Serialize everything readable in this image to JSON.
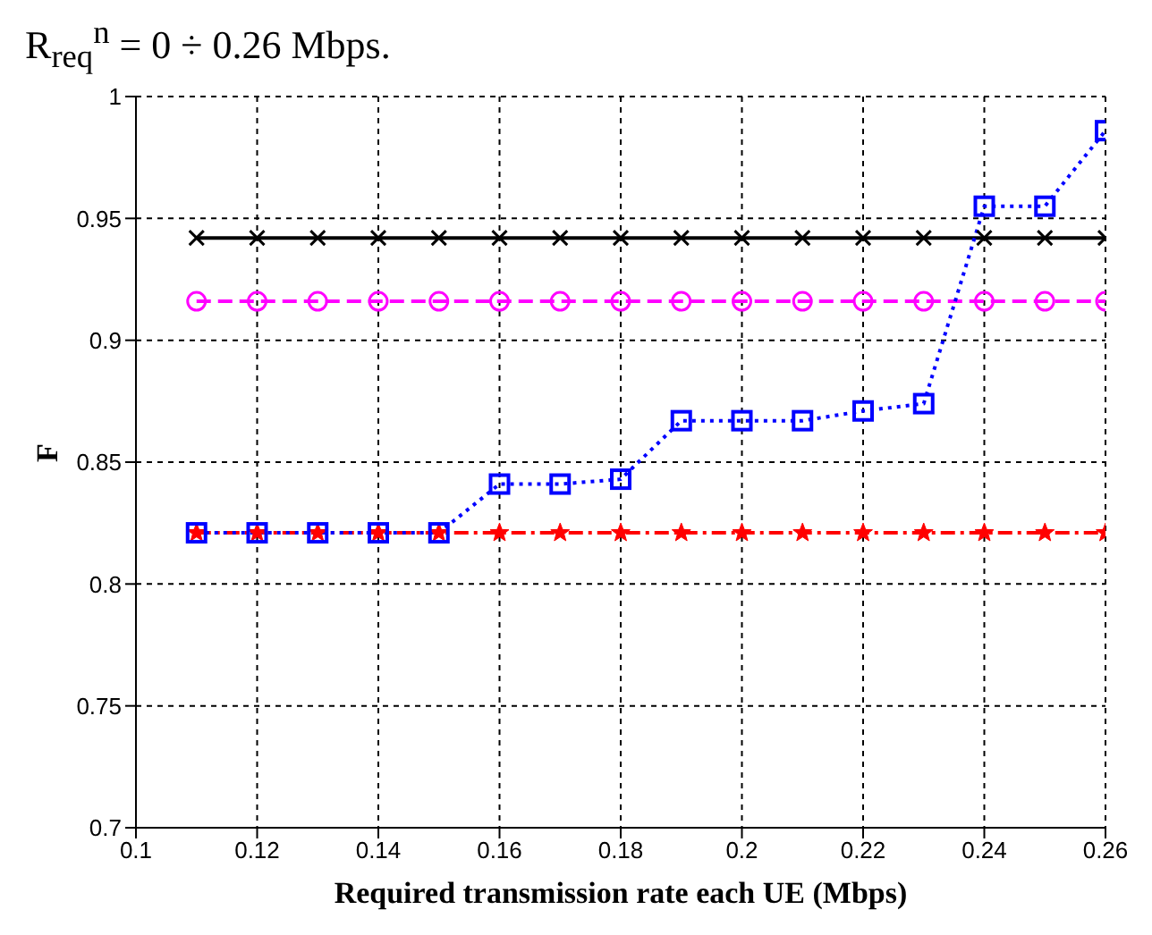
{
  "chart_data": {
    "type": "line",
    "title": "R$_{req}$$^{n}$ = 0 ÷ 0.26 Mbps.",
    "xlabel": "Required transmission rate each UE (Mbps)",
    "ylabel": "F",
    "x": [
      0.11,
      0.12,
      0.13,
      0.14,
      0.15,
      0.16,
      0.17,
      0.18,
      0.19,
      0.2,
      0.21,
      0.22,
      0.23,
      0.24,
      0.25,
      0.26
    ],
    "series": [
      {
        "color": "#000000",
        "marker": "cross",
        "line_style": "solid",
        "values": [
          0.942,
          0.942,
          0.942,
          0.942,
          0.942,
          0.942,
          0.942,
          0.942,
          0.942,
          0.942,
          0.942,
          0.942,
          0.942,
          0.942,
          0.942,
          0.942
        ]
      },
      {
        "color": "#ff00ff",
        "marker": "circle",
        "line_style": "dashed",
        "values": [
          0.916,
          0.916,
          0.916,
          0.916,
          0.916,
          0.916,
          0.916,
          0.916,
          0.916,
          0.916,
          0.916,
          0.916,
          0.916,
          0.916,
          0.916,
          0.916
        ]
      },
      {
        "color": "#ff0000",
        "marker": "star",
        "line_style": "dashdot",
        "values": [
          0.821,
          0.821,
          0.821,
          0.821,
          0.821,
          0.821,
          0.821,
          0.821,
          0.821,
          0.821,
          0.821,
          0.821,
          0.821,
          0.821,
          0.821,
          0.821
        ]
      },
      {
        "color": "#0000ff",
        "marker": "square",
        "line_style": "dotted",
        "values": [
          0.821,
          0.821,
          0.821,
          0.821,
          0.821,
          0.841,
          0.841,
          0.843,
          0.867,
          0.867,
          0.867,
          0.871,
          0.874,
          0.955,
          0.955,
          0.986
        ]
      }
    ],
    "xlim": [
      0.1,
      0.26
    ],
    "xticks": [
      0.1,
      0.12,
      0.14,
      0.16,
      0.18,
      0.2,
      0.22,
      0.24,
      0.26
    ],
    "ylim": [
      0.7,
      1
    ],
    "yticks": [
      0.7,
      0.75,
      0.8,
      0.85,
      0.9,
      0.95,
      1
    ],
    "grid": true
  }
}
